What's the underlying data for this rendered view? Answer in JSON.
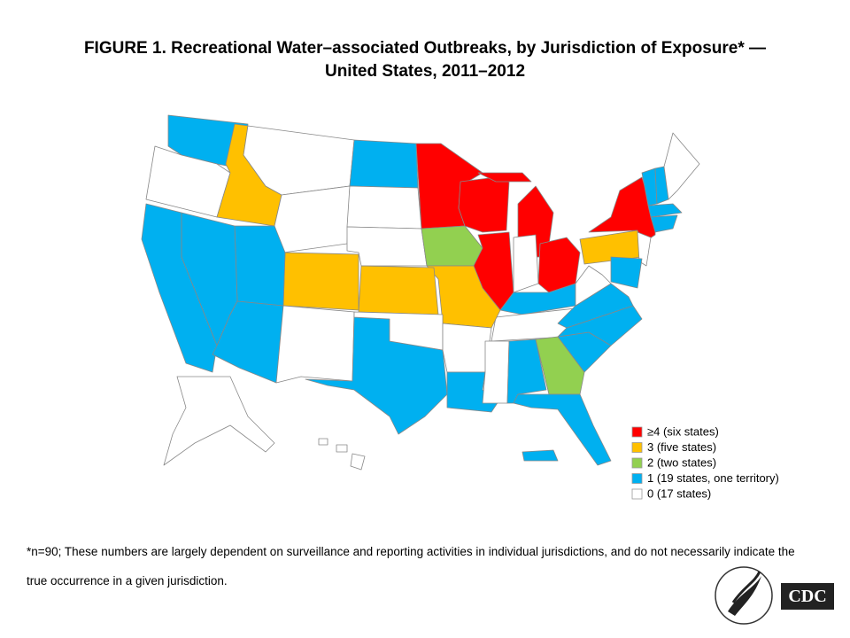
{
  "title": [
    "FIGURE 1. Recreational Water–associated Outbreaks, by Jurisdiction of Exposure* —",
    "United States, 2011–2012"
  ],
  "legend": [
    {
      "label": "≥4 (six states)",
      "color": "#ff0000"
    },
    {
      "label": "3 (five states)",
      "color": "#ffc000"
    },
    {
      "label": "2 (two states)",
      "color": "#92d050"
    },
    {
      "label": "1 (19 states, one territory)",
      "color": "#00b0f0"
    },
    {
      "label": "0 (17 states)",
      "color": "#ffffff"
    }
  ],
  "footnote": [
    "*n=90; These numbers are largely dependent on surveillance and reporting activities in individual jurisdictions, and do not necessarily indicate the",
    "true occurrence in a given jurisdiction."
  ],
  "logo": "CDC"
}
